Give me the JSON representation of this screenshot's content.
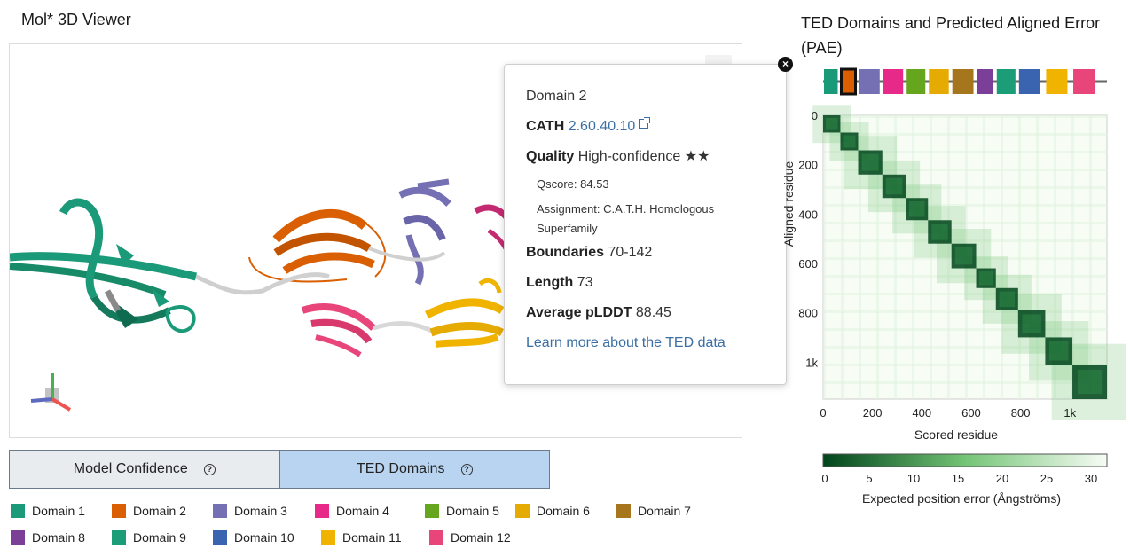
{
  "viewer": {
    "title": "Mol* 3D Viewer",
    "mini_button": "↔"
  },
  "popup": {
    "domain_label": "Domain",
    "domain_value": "2",
    "cath_label": "CATH",
    "cath_value": "2.60.40.10",
    "quality_label": "Quality",
    "quality_value": "High-confidence ★★",
    "qscore": "Qscore: 84.53",
    "assignment_line1": "Assignment: C.A.T.H. Homologous",
    "assignment_line2": "Superfamily",
    "boundaries_label": "Boundaries",
    "boundaries_value": "70-142",
    "length_label": "Length",
    "length_value": "73",
    "plddt_label": "Average pLDDT",
    "plddt_value": "88.45",
    "learn_more": "Learn more about the TED data",
    "close_glyph": "×"
  },
  "tabs": {
    "model_confidence": "Model Confidence",
    "ted_domains": "TED Domains",
    "help_glyph": "?"
  },
  "legend": [
    {
      "label": "Domain 1",
      "color": "#1a9a78"
    },
    {
      "label": "Domain 2",
      "color": "#d95f02"
    },
    {
      "label": "Domain 3",
      "color": "#7570b3"
    },
    {
      "label": "Domain 4",
      "color": "#e7298a"
    },
    {
      "label": "Domain 5",
      "color": "#66a61e"
    },
    {
      "label": "Domain 6",
      "color": "#e6ab02"
    },
    {
      "label": "Domain 7",
      "color": "#a6761d"
    },
    {
      "label": "Domain 8",
      "color": "#7b3f98"
    },
    {
      "label": "Domain 9",
      "color": "#1b9e77"
    },
    {
      "label": "Domain 10",
      "color": "#3a64b0"
    },
    {
      "label": "Domain 11",
      "color": "#f0b400"
    },
    {
      "label": "Domain 12",
      "color": "#e8457a"
    }
  ],
  "pae": {
    "title": "TED Domains and Predicted Aligned Error (PAE)",
    "x_label": "Scored residue",
    "y_label": "Aligned residue",
    "colorbar_label": "Expected position error (Ångströms)",
    "axis_max": 1150,
    "x_ticks": [
      "0",
      "200",
      "400",
      "600",
      "800",
      "1k"
    ],
    "y_ticks": [
      "0",
      "200",
      "400",
      "600",
      "800",
      "1k"
    ],
    "tick_values": [
      0,
      200,
      400,
      600,
      800,
      1000
    ],
    "colorbar_ticks": [
      "0",
      "5",
      "10",
      "15",
      "20",
      "25",
      "30"
    ],
    "colorbar_values": [
      0,
      5,
      10,
      15,
      20,
      25,
      30
    ],
    "colorbar_max": 32,
    "colors": {
      "low": "#00441b",
      "mid": "#74c476",
      "high": "#f7fcf5"
    },
    "domain_blocks": [
      {
        "start": 0,
        "end": 70
      },
      {
        "start": 70,
        "end": 142
      },
      {
        "start": 142,
        "end": 240
      },
      {
        "start": 240,
        "end": 335
      },
      {
        "start": 335,
        "end": 425
      },
      {
        "start": 425,
        "end": 520
      },
      {
        "start": 520,
        "end": 620
      },
      {
        "start": 620,
        "end": 700
      },
      {
        "start": 700,
        "end": 790
      },
      {
        "start": 790,
        "end": 900
      },
      {
        "start": 900,
        "end": 1010
      },
      {
        "start": 1010,
        "end": 1150
      }
    ],
    "domain_track": [
      {
        "color": "#1a9a78"
      },
      {
        "color": "#d95f02",
        "selected": true
      },
      {
        "color": "#7570b3"
      },
      {
        "color": "#e7298a"
      },
      {
        "color": "#66a61e"
      },
      {
        "color": "#e6ab02"
      },
      {
        "color": "#a6761d"
      },
      {
        "color": "#7b3f98"
      },
      {
        "color": "#1b9e77"
      },
      {
        "color": "#3a64b0"
      },
      {
        "color": "#f0b400"
      },
      {
        "color": "#e8457a"
      }
    ]
  }
}
